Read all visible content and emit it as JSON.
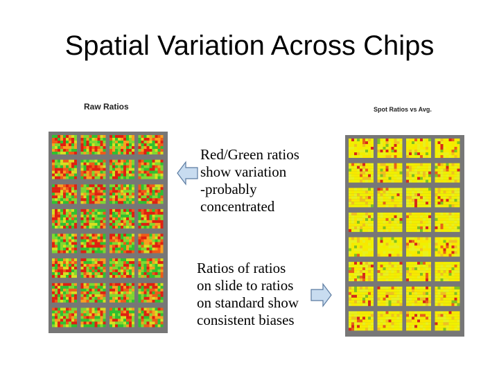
{
  "slide": {
    "title": "Spatial Variation Across Chips"
  },
  "left_panel": {
    "caption": "Raw Ratios",
    "colors": [
      "#e02010",
      "#f05a18",
      "#f8a020",
      "#d8e020",
      "#80d830",
      "#30c030"
    ]
  },
  "right_panel": {
    "caption": "Spot Ratios vs Avg.",
    "colors": [
      "#f0f000",
      "#f8e800",
      "#e8f020",
      "#f0c020",
      "#e86018",
      "#d82818",
      "#80c020"
    ]
  },
  "notes": {
    "top_lines": [
      "Red/Green ratios",
      "show variation",
      "-probably",
      "concentrated"
    ],
    "bottom_lines": [
      "Ratios of ratios",
      "on slide to ratios",
      "on standard show",
      "consistent biases"
    ]
  },
  "arrow_color": "#7fa0c8"
}
